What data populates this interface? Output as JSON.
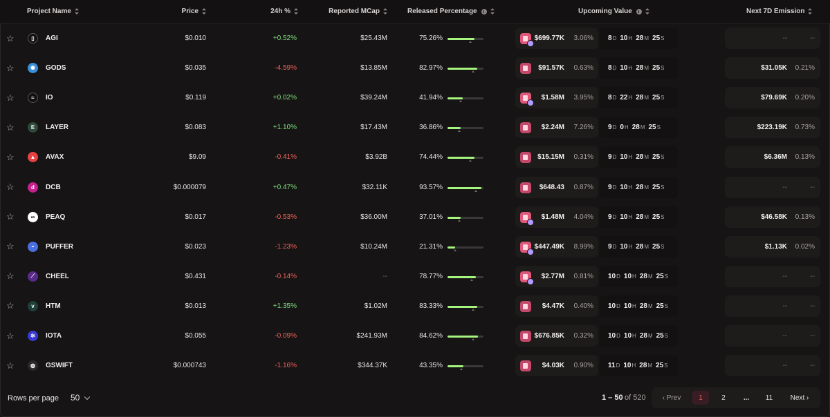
{
  "headers": {
    "project_name": "Project Name",
    "price": "Price",
    "change_24h": "24h %",
    "reported_mcap": "Reported MCap",
    "released_percentage": "Released Percentage",
    "upcoming_value": "Upcoming Value",
    "next_7d_emission": "Next 7D Emission"
  },
  "rows": [
    {
      "name": "AGI",
      "logo": "agi",
      "logo_color": "#111111",
      "price": "$0.010",
      "change": "+0.52%",
      "dir": "up",
      "mcap": "$25.43M",
      "released": "75.26%",
      "released_frac": 0.7526,
      "upcoming_value": "$699.77K",
      "upcoming_pct": "3.06%",
      "badge": "multi",
      "timer": {
        "d": "8",
        "h": "10",
        "m": "28",
        "s": "25"
      },
      "emission": "--",
      "emission_pct": "--"
    },
    {
      "name": "GODS",
      "logo": "gods",
      "logo_color": "#3a8fd6",
      "price": "$0.035",
      "change": "-4.59%",
      "dir": "down",
      "mcap": "$13.85M",
      "released": "82.97%",
      "released_frac": 0.8297,
      "upcoming_value": "$91.57K",
      "upcoming_pct": "0.63%",
      "badge": "single",
      "timer": {
        "d": "8",
        "h": "10",
        "m": "28",
        "s": "25"
      },
      "emission": "$31.05K",
      "emission_pct": "0.21%"
    },
    {
      "name": "IO",
      "logo": "io",
      "logo_color": "#111111",
      "price": "$0.119",
      "change": "+0.02%",
      "dir": "up",
      "mcap": "$39.24M",
      "released": "41.94%",
      "released_frac": 0.4194,
      "upcoming_value": "$1.58M",
      "upcoming_pct": "3.95%",
      "badge": "multi",
      "timer": {
        "d": "8",
        "h": "22",
        "m": "28",
        "s": "25"
      },
      "emission": "$79.69K",
      "emission_pct": "0.20%"
    },
    {
      "name": "LAYER",
      "logo": "layer",
      "logo_color": "#2f4a3a",
      "price": "$0.083",
      "change": "+1.10%",
      "dir": "up",
      "mcap": "$17.43M",
      "released": "36.86%",
      "released_frac": 0.3686,
      "upcoming_value": "$2.24M",
      "upcoming_pct": "7.26%",
      "badge": "single",
      "timer": {
        "d": "9",
        "h": "0",
        "m": "28",
        "s": "25"
      },
      "emission": "$223.19K",
      "emission_pct": "0.73%"
    },
    {
      "name": "AVAX",
      "logo": "avax",
      "logo_color": "#e84142",
      "price": "$9.09",
      "change": "-0.41%",
      "dir": "down",
      "mcap": "$3.92B",
      "released": "74.44%",
      "released_frac": 0.7444,
      "upcoming_value": "$15.15M",
      "upcoming_pct": "0.31%",
      "badge": "single",
      "timer": {
        "d": "9",
        "h": "10",
        "m": "28",
        "s": "25"
      },
      "emission": "$6.36M",
      "emission_pct": "0.13%"
    },
    {
      "name": "DCB",
      "logo": "dcb",
      "logo_color": "#c4208e",
      "price": "$0.000079",
      "change": "+0.47%",
      "dir": "up",
      "mcap": "$32.11K",
      "released": "93.57%",
      "released_frac": 0.9357,
      "upcoming_value": "$648.43",
      "upcoming_pct": "0.87%",
      "badge": "single",
      "timer": {
        "d": "9",
        "h": "10",
        "m": "28",
        "s": "25"
      },
      "emission": "--",
      "emission_pct": "--"
    },
    {
      "name": "PEAQ",
      "logo": "peaq",
      "logo_color": "#ffffff",
      "price": "$0.017",
      "change": "-0.53%",
      "dir": "down",
      "mcap": "$36.00M",
      "released": "37.01%",
      "released_frac": 0.3701,
      "upcoming_value": "$1.48M",
      "upcoming_pct": "4.04%",
      "badge": "multi",
      "timer": {
        "d": "9",
        "h": "10",
        "m": "28",
        "s": "25"
      },
      "emission": "$46.58K",
      "emission_pct": "0.13%"
    },
    {
      "name": "PUFFER",
      "logo": "puffer",
      "logo_color": "#4a6fe0",
      "price": "$0.023",
      "change": "-1.23%",
      "dir": "down",
      "mcap": "$10.24M",
      "released": "21.31%",
      "released_frac": 0.2131,
      "upcoming_value": "$447.49K",
      "upcoming_pct": "8.99%",
      "badge": "multi",
      "timer": {
        "d": "9",
        "h": "10",
        "m": "28",
        "s": "25"
      },
      "emission": "$1.13K",
      "emission_pct": "0.02%"
    },
    {
      "name": "CHEEL",
      "logo": "cheel",
      "logo_color": "#5a2a8a",
      "price": "$0.431",
      "change": "-0.14%",
      "dir": "down",
      "mcap": "--",
      "released": "78.77%",
      "released_frac": 0.7877,
      "upcoming_value": "$2.77M",
      "upcoming_pct": "0.81%",
      "badge": "multi",
      "timer": {
        "d": "10",
        "h": "10",
        "m": "28",
        "s": "25"
      },
      "emission": "--",
      "emission_pct": "--"
    },
    {
      "name": "HTM",
      "logo": "htm",
      "logo_color": "#1f3f3a",
      "price": "$0.013",
      "change": "+1.35%",
      "dir": "up",
      "mcap": "$1.02M",
      "released": "83.33%",
      "released_frac": 0.8333,
      "upcoming_value": "$4.47K",
      "upcoming_pct": "0.40%",
      "badge": "single",
      "timer": {
        "d": "10",
        "h": "10",
        "m": "28",
        "s": "25"
      },
      "emission": "--",
      "emission_pct": "--"
    },
    {
      "name": "IOTA",
      "logo": "iota",
      "logo_color": "#3a3ad6",
      "price": "$0.055",
      "change": "-0.09%",
      "dir": "down",
      "mcap": "$241.93M",
      "released": "84.62%",
      "released_frac": 0.8462,
      "upcoming_value": "$676.85K",
      "upcoming_pct": "0.32%",
      "badge": "single",
      "timer": {
        "d": "10",
        "h": "10",
        "m": "28",
        "s": "25"
      },
      "emission": "--",
      "emission_pct": "--"
    },
    {
      "name": "GSWIFT",
      "logo": "gswift",
      "logo_color": "#2a2a2a",
      "price": "$0.000743",
      "change": "-1.16%",
      "dir": "down",
      "mcap": "$344.37K",
      "released": "43.35%",
      "released_frac": 0.4335,
      "upcoming_value": "$4.03K",
      "upcoming_pct": "0.90%",
      "badge": "single",
      "timer": {
        "d": "11",
        "h": "10",
        "m": "28",
        "s": "25"
      },
      "emission": "--",
      "emission_pct": "--"
    }
  ],
  "timer_units": {
    "d": "D",
    "h": "H",
    "m": "M",
    "s": "S"
  },
  "footer": {
    "rows_per_page_label": "Rows per page",
    "rows_per_page_value": "50",
    "range": "1 – 50",
    "of_total": "of 520",
    "prev": "‹ Prev",
    "pages": [
      "1",
      "2",
      "...",
      "11"
    ],
    "next": "Next ›"
  },
  "colors": {
    "up": "#7ee07e",
    "down": "#f0635c",
    "bar_fill": "#a6f57e",
    "active_page": "#f0635c",
    "badge": "#e05779"
  }
}
